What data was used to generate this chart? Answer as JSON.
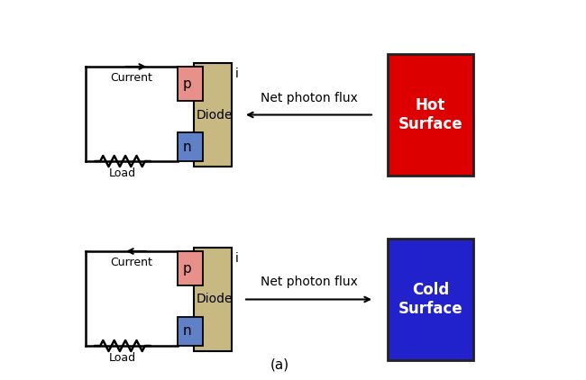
{
  "diode_tan": "#c8b882",
  "p_color": "#e8908a",
  "n_color": "#6080c8",
  "hot_color": "#dd0000",
  "cold_color": "#2222cc",
  "caption": "(a)",
  "top": {
    "current_label": "Current",
    "current_dir": "right",
    "load_label": "Load",
    "flux_label": "Net photon flux",
    "flux_dir": "left",
    "surface_label": "Hot\nSurface"
  },
  "bottom": {
    "current_label": "Current",
    "current_dir": "left",
    "load_label": "Load",
    "flux_label": "Net photon flux",
    "flux_dir": "right",
    "surface_label": "Cold\nSurface"
  }
}
